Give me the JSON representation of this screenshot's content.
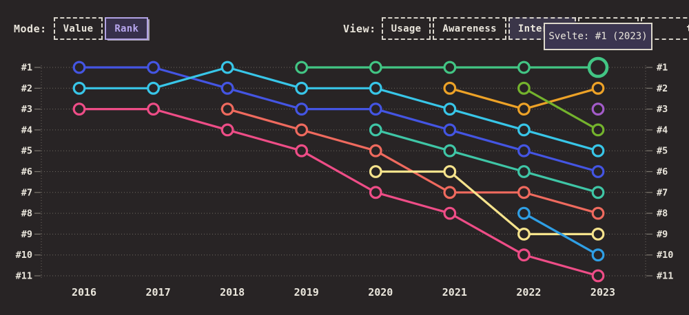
{
  "header": {
    "mode": {
      "label": "Mode:",
      "options": [
        {
          "label": "Value",
          "selected": false
        },
        {
          "label": "Rank",
          "selected": true
        }
      ]
    },
    "view": {
      "label": "View:",
      "options": [
        {
          "label": "Usage",
          "selected": false
        },
        {
          "label": "Awareness",
          "selected": false
        },
        {
          "label": "Interest",
          "selected": true
        },
        {
          "label": "",
          "selected": false,
          "covered_by_tooltip": true
        },
        {
          "label": "ty",
          "selected": false,
          "covered_by_tooltip": true
        }
      ]
    }
  },
  "tooltip": {
    "text": "Svelte: #1 (2023)"
  },
  "chart_data": {
    "type": "line",
    "subtype": "bump-rank-chart",
    "title": "",
    "x": [
      2016,
      2017,
      2018,
      2019,
      2020,
      2021,
      2022,
      2023
    ],
    "y_axis": {
      "labels": [
        "#1",
        "#2",
        "#3",
        "#4",
        "#5",
        "#6",
        "#7",
        "#8",
        "#9",
        "#10",
        "#11"
      ],
      "both_sides": true,
      "direction": "rank-1-top"
    },
    "grid": "dotted-horizontal",
    "background": "#282425",
    "grid_color": "#6f6a62",
    "tick_color": "#7d7870",
    "label_color": "#eae6dc",
    "series": [
      {
        "name": "royal-blue",
        "color": "#4455e3",
        "ranks": [
          1,
          1,
          2,
          3,
          3,
          4,
          5,
          6
        ]
      },
      {
        "name": "cyan",
        "color": "#38c6e8",
        "ranks": [
          2,
          2,
          1,
          2,
          2,
          3,
          4,
          5
        ]
      },
      {
        "name": "pink",
        "color": "#ee4d87",
        "ranks": [
          3,
          3,
          4,
          5,
          7,
          8,
          10,
          11
        ]
      },
      {
        "name": "salmon",
        "color": "#ef6a5e",
        "ranks": [
          null,
          null,
          3,
          4,
          5,
          7,
          7,
          8
        ]
      },
      {
        "name": "svelte-green",
        "color": "#42c584",
        "ranks": [
          null,
          null,
          null,
          1,
          1,
          1,
          1,
          1
        ],
        "highlight": {
          "year": 2023,
          "rank": 1
        }
      },
      {
        "name": "teal",
        "color": "#3fc6a6",
        "ranks": [
          null,
          null,
          null,
          null,
          4,
          5,
          6,
          7
        ]
      },
      {
        "name": "yellow",
        "color": "#f6e38c",
        "ranks": [
          null,
          null,
          null,
          null,
          6,
          6,
          9,
          9
        ]
      },
      {
        "name": "orange",
        "color": "#eda227",
        "ranks": [
          null,
          null,
          null,
          null,
          null,
          2,
          3,
          2
        ]
      },
      {
        "name": "olive-green",
        "color": "#74b32d",
        "ranks": [
          null,
          null,
          null,
          null,
          null,
          null,
          2,
          4
        ]
      },
      {
        "name": "sky-blue",
        "color": "#2f9fe5",
        "ranks": [
          null,
          null,
          null,
          null,
          null,
          null,
          8,
          10
        ]
      },
      {
        "name": "purple",
        "color": "#a35bc9",
        "ranks": [
          null,
          null,
          null,
          null,
          null,
          null,
          null,
          3
        ]
      }
    ],
    "highlighted_point": {
      "series": "svelte-green",
      "year": 2023,
      "rank": 1,
      "tooltip": "Svelte: #1 (2023)"
    }
  }
}
